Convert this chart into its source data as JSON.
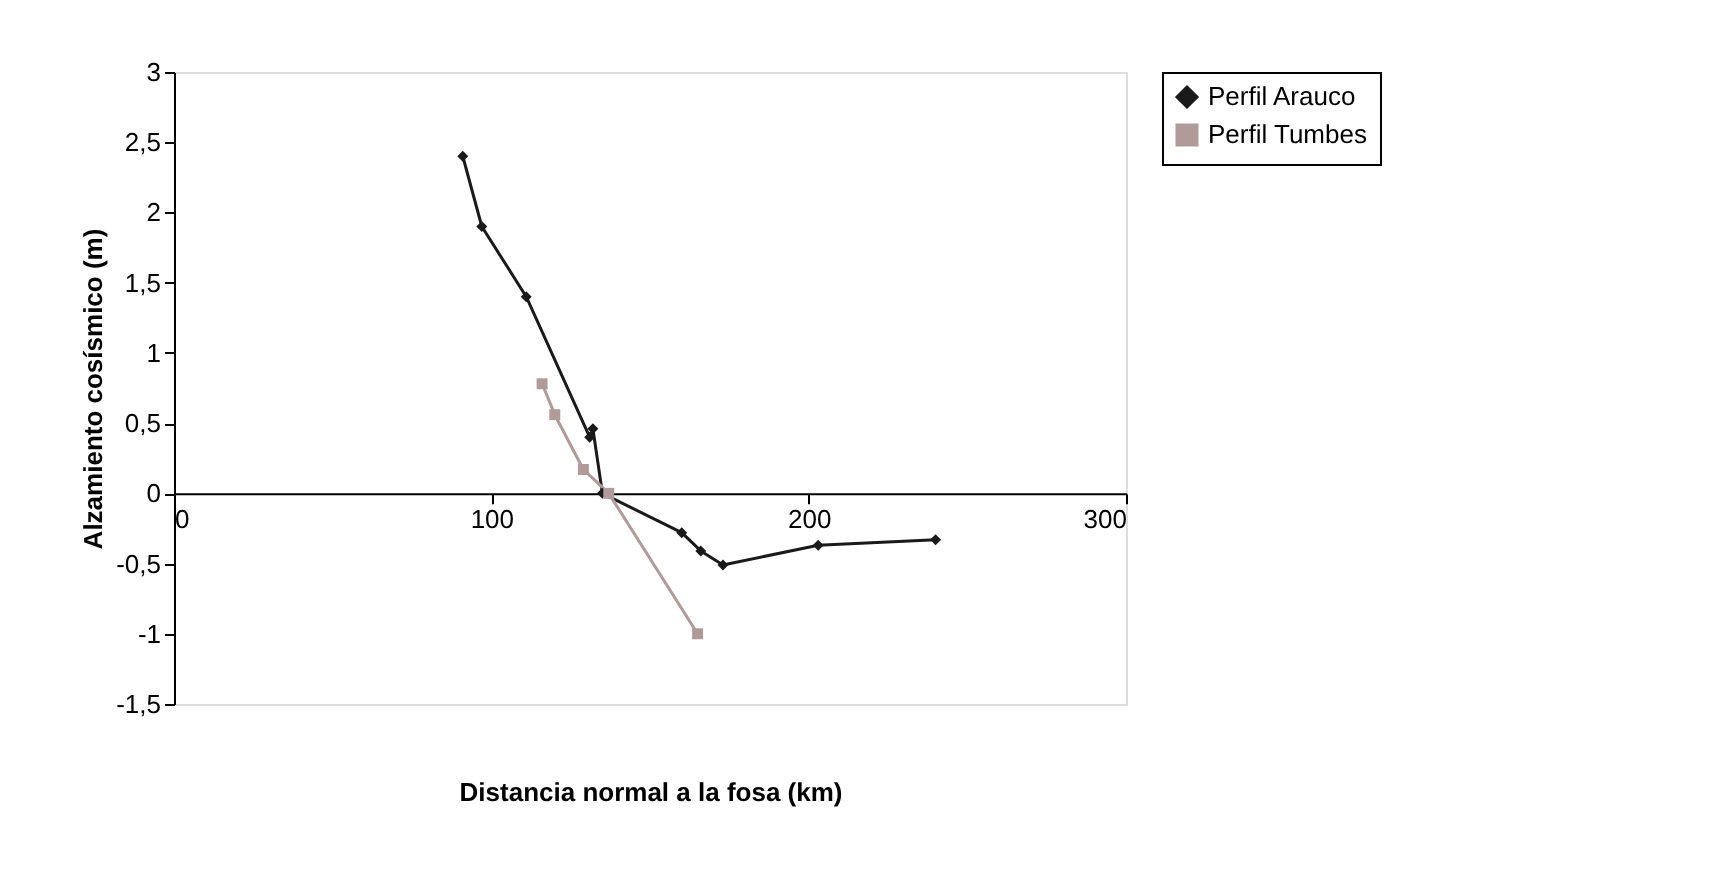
{
  "chart_data": {
    "type": "line",
    "xlabel": "Distancia normal a la fosa (km)",
    "ylabel": "Alzamiento cosísmico (m)",
    "xlim": [
      0,
      300
    ],
    "xticks": [
      0,
      100,
      200,
      300
    ],
    "ylim": [
      -1.5,
      3
    ],
    "yticks": [
      {
        "value": -1.5,
        "label": "-1,5"
      },
      {
        "value": -1,
        "label": "-1"
      },
      {
        "value": -0.5,
        "label": "-0,5"
      },
      {
        "value": 0,
        "label": "0"
      },
      {
        "value": 0.5,
        "label": "0,5"
      },
      {
        "value": 1,
        "label": "1"
      },
      {
        "value": 1.5,
        "label": "1,5"
      },
      {
        "value": 2,
        "label": "2"
      },
      {
        "value": 2.5,
        "label": "2,5"
      },
      {
        "value": 3,
        "label": "3"
      }
    ],
    "grid": false,
    "legend": "right",
    "line_style": "solid",
    "series": [
      {
        "name": "Perfil Arauco",
        "color": "#1a1a1a",
        "marker": "diamond",
        "x": [
          91,
          97,
          111,
          131,
          132,
          135,
          160,
          166,
          173,
          203,
          240
        ],
        "values": [
          2.4,
          1.9,
          1.4,
          0.4,
          0.46,
          0,
          -0.28,
          -0.41,
          -0.51,
          -0.37,
          -0.33
        ]
      },
      {
        "name": "Perfil Tumbes",
        "color": "#b09a9a",
        "marker": "square",
        "x": [
          116,
          120,
          129,
          137,
          165
        ],
        "values": [
          0.78,
          0.56,
          0.17,
          0,
          -1
        ]
      }
    ]
  }
}
